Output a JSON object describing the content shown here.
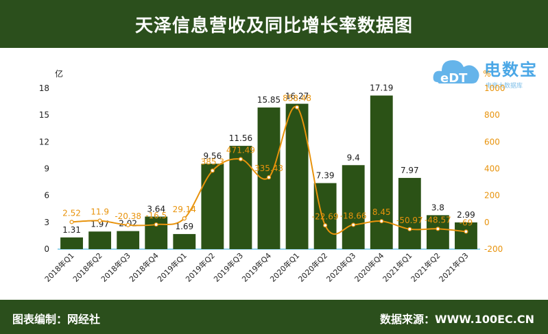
{
  "header": {
    "title": "天泽信息营收及同比增长率数据图"
  },
  "footer": {
    "left": "图表编制：网经社",
    "right": "数据来源：WWW.100EC.CN"
  },
  "logo": {
    "brand": "电数宝",
    "sub": "电商大数据库",
    "cloud_text": "eDT"
  },
  "colors": {
    "bar": "#2b5216",
    "line": "#e8930c",
    "header_bg": "#2b4f1c",
    "logo": "#4aa7e6"
  },
  "chart_data": {
    "type": "bar+line",
    "categories": [
      "2018年Q1",
      "2018年Q2",
      "2018年Q3",
      "2018年Q4",
      "2019年Q1",
      "2019年Q2",
      "2019年Q3",
      "2019年Q4",
      "2020年Q1",
      "2020年Q2",
      "2020年Q3",
      "2020年Q4",
      "2021年Q1",
      "2021年Q2",
      "2021年Q3"
    ],
    "series": [
      {
        "axis": "left",
        "kind": "bar",
        "values": [
          1.31,
          1.97,
          2.02,
          3.64,
          1.69,
          9.56,
          11.56,
          15.85,
          16.27,
          7.39,
          9.4,
          17.19,
          7.97,
          3.8,
          2.99
        ],
        "labels": [
          "1.31",
          "1.97",
          "2.02",
          "3.64",
          "1.69",
          "9.56",
          "11.56",
          "15.85",
          "16.27",
          "7.39",
          "9.4",
          "17.19",
          "7.97",
          "3.8",
          "2.99"
        ]
      },
      {
        "axis": "right",
        "kind": "line",
        "values": [
          2.52,
          11.9,
          -20.38,
          -16.5,
          29.14,
          385.3,
          471.49,
          335.43,
          858.48,
          -22.69,
          -18.66,
          8.45,
          -50.97,
          -48.57,
          -69
        ],
        "labels": [
          "2.52",
          "11.9",
          "-20.38",
          "-16.5",
          "29.14",
          "385.3",
          "471.49",
          "335.43",
          "858.48",
          "-22.69",
          "-18.66",
          "8.45",
          "-50.97",
          "-48.57",
          "-69"
        ]
      }
    ],
    "y_left": {
      "unit": "亿",
      "min": 0,
      "max": 18,
      "ticks": [
        0,
        3,
        6,
        9,
        12,
        15,
        18
      ]
    },
    "y_right": {
      "unit": "%",
      "min": -200,
      "max": 1000,
      "ticks": [
        -200,
        0,
        200,
        400,
        600,
        800,
        1000
      ]
    },
    "grid": false
  }
}
